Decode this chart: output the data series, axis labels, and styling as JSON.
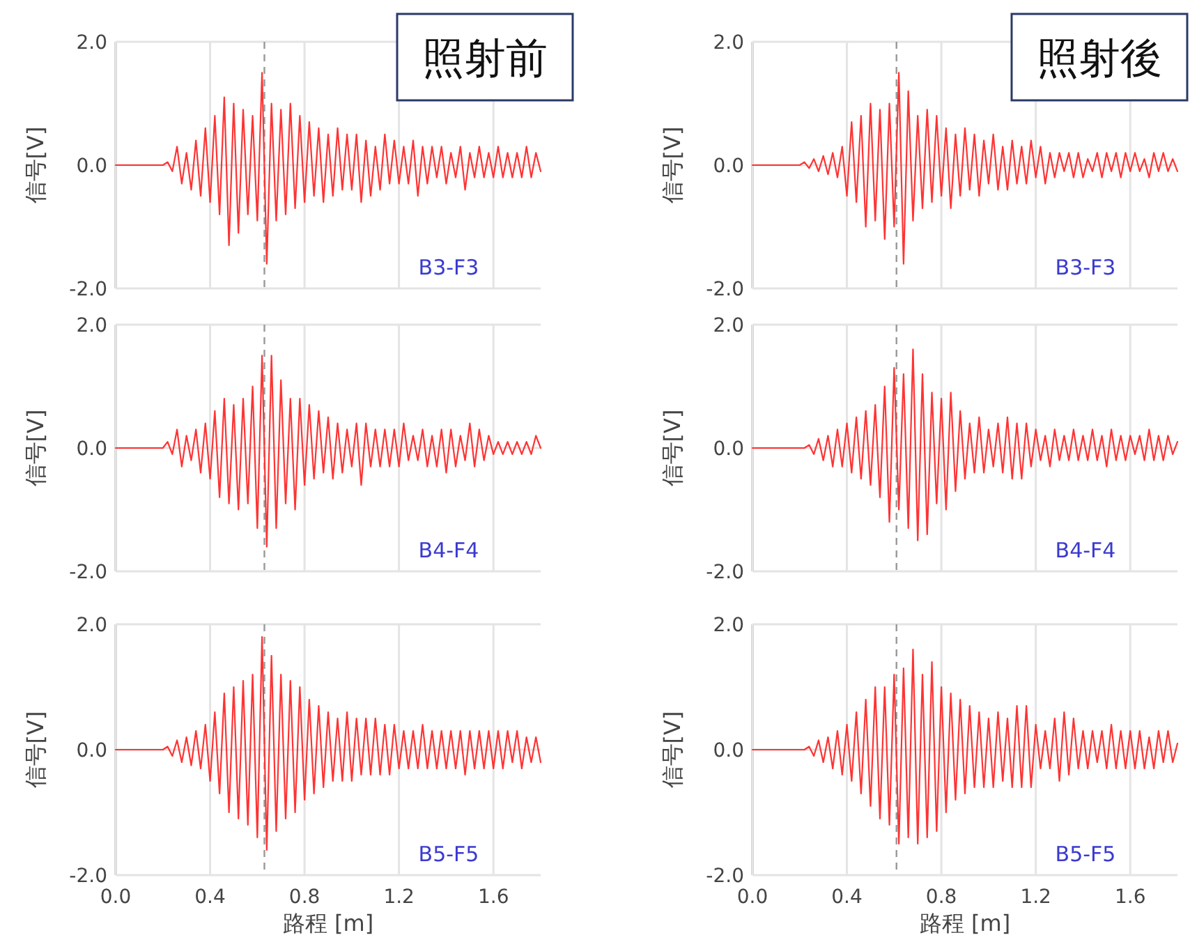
{
  "chart_data": [
    {
      "type": "line",
      "title": "照射前",
      "ylabel": "信号[V]",
      "annotations": [
        "B3-F3"
      ],
      "xlim": [
        0,
        1.8
      ],
      "ylim": [
        -2,
        2
      ],
      "xticks": [
        0,
        0.4,
        0.8,
        1.2,
        1.6
      ],
      "yticks": [
        {
          "value": -2,
          "label": "-2.0"
        },
        {
          "value": 0,
          "label": "0.0"
        },
        {
          "value": 2,
          "label": "2.0"
        }
      ],
      "tick_labels": "y",
      "grid": true,
      "ref_lines": [
        {
          "axis": "x",
          "value": 0.63,
          "line_style": "dashed",
          "color": "#999999"
        }
      ],
      "x": [
        0,
        0.2,
        0.22,
        0.24,
        0.26,
        0.28,
        0.3,
        0.32,
        0.34,
        0.36,
        0.38,
        0.4,
        0.42,
        0.44,
        0.46,
        0.48,
        0.5,
        0.52,
        0.54,
        0.56,
        0.58,
        0.6,
        0.62,
        0.64,
        0.66,
        0.68,
        0.7,
        0.72,
        0.74,
        0.76,
        0.78,
        0.8,
        0.82,
        0.84,
        0.86,
        0.88,
        0.9,
        0.92,
        0.94,
        0.96,
        0.98,
        1,
        1.02,
        1.04,
        1.06,
        1.08,
        1.1,
        1.12,
        1.14,
        1.16,
        1.18,
        1.2,
        1.22,
        1.24,
        1.26,
        1.28,
        1.3,
        1.32,
        1.34,
        1.36,
        1.38,
        1.4,
        1.42,
        1.44,
        1.46,
        1.48,
        1.5,
        1.52,
        1.54,
        1.56,
        1.58,
        1.6,
        1.62,
        1.64,
        1.66,
        1.68,
        1.7,
        1.72,
        1.74,
        1.76,
        1.78,
        1.8
      ],
      "series": [
        {
          "color": "#ff3333",
          "values": [
            0,
            0,
            0.05,
            -0.1,
            0.3,
            -0.3,
            0.2,
            -0.4,
            0.4,
            -0.5,
            0.6,
            -0.6,
            0.8,
            -0.8,
            1.1,
            -1.3,
            1.0,
            -1.1,
            0.9,
            -0.8,
            0.8,
            -0.9,
            1.5,
            -1.6,
            1.0,
            -0.9,
            0.9,
            -0.8,
            1.0,
            -0.7,
            0.8,
            -0.6,
            0.7,
            -0.5,
            0.6,
            -0.6,
            0.5,
            -0.5,
            0.6,
            -0.4,
            0.5,
            -0.4,
            0.5,
            -0.6,
            0.4,
            -0.5,
            0.3,
            -0.4,
            0.5,
            -0.3,
            0.4,
            -0.3,
            0.3,
            -0.3,
            0.4,
            -0.5,
            0.3,
            -0.3,
            0.3,
            -0.2,
            0.3,
            -0.3,
            0.2,
            -0.2,
            0.3,
            -0.4,
            0.2,
            -0.2,
            0.3,
            -0.2,
            0.2,
            -0.2,
            0.3,
            -0.2,
            0.2,
            -0.2,
            0.2,
            -0.2,
            0.3,
            -0.2,
            0.2,
            -0.1
          ]
        }
      ]
    },
    {
      "type": "line",
      "title": "照射後",
      "ylabel": "信号[V]",
      "annotations": [
        "B3-F3"
      ],
      "xlim": [
        0,
        1.8
      ],
      "ylim": [
        -2,
        2
      ],
      "xticks": [
        0,
        0.4,
        0.8,
        1.2,
        1.6
      ],
      "yticks": [
        {
          "value": -2,
          "label": "-2.0"
        },
        {
          "value": 0,
          "label": "0.0"
        },
        {
          "value": 2,
          "label": "2.0"
        }
      ],
      "tick_labels": "y",
      "grid": true,
      "ref_lines": [
        {
          "axis": "x",
          "value": 0.61,
          "line_style": "dashed",
          "color": "#999999"
        }
      ],
      "x": [
        0,
        0.2,
        0.22,
        0.24,
        0.26,
        0.28,
        0.3,
        0.32,
        0.34,
        0.36,
        0.38,
        0.4,
        0.42,
        0.44,
        0.46,
        0.48,
        0.5,
        0.52,
        0.54,
        0.56,
        0.58,
        0.6,
        0.62,
        0.64,
        0.66,
        0.68,
        0.7,
        0.72,
        0.74,
        0.76,
        0.78,
        0.8,
        0.82,
        0.84,
        0.86,
        0.88,
        0.9,
        0.92,
        0.94,
        0.96,
        0.98,
        1,
        1.02,
        1.04,
        1.06,
        1.08,
        1.1,
        1.12,
        1.14,
        1.16,
        1.18,
        1.2,
        1.22,
        1.24,
        1.26,
        1.28,
        1.3,
        1.32,
        1.34,
        1.36,
        1.38,
        1.4,
        1.42,
        1.44,
        1.46,
        1.48,
        1.5,
        1.52,
        1.54,
        1.56,
        1.58,
        1.6,
        1.62,
        1.64,
        1.66,
        1.68,
        1.7,
        1.72,
        1.74,
        1.76,
        1.78,
        1.8
      ],
      "series": [
        {
          "color": "#ff3333",
          "values": [
            0,
            0,
            0.05,
            -0.05,
            0.1,
            -0.1,
            0.15,
            -0.15,
            0.2,
            -0.2,
            0.3,
            -0.5,
            0.7,
            -0.6,
            0.8,
            -1.0,
            1.0,
            -0.9,
            0.9,
            -1.2,
            1.0,
            -1.0,
            1.5,
            -1.6,
            1.2,
            -0.9,
            0.8,
            -0.7,
            0.9,
            -0.6,
            0.8,
            -0.5,
            0.6,
            -0.7,
            0.5,
            -0.5,
            0.6,
            -0.4,
            0.5,
            -0.5,
            0.4,
            -0.3,
            0.5,
            -0.4,
            0.3,
            -0.4,
            0.4,
            -0.3,
            0.3,
            -0.3,
            0.4,
            -0.2,
            0.3,
            -0.3,
            0.2,
            -0.2,
            0.2,
            -0.1,
            0.2,
            -0.2,
            0.2,
            -0.2,
            0.1,
            -0.1,
            0.2,
            -0.2,
            0.2,
            -0.1,
            0.2,
            -0.2,
            0.2,
            -0.1,
            0.2,
            -0.1,
            0.1,
            -0.2,
            0.2,
            -0.1,
            0.2,
            -0.1,
            0.1,
            -0.1
          ]
        }
      ]
    },
    {
      "type": "line",
      "ylabel": "信号[V]",
      "annotations": [
        "B4-F4"
      ],
      "xlim": [
        0,
        1.8
      ],
      "ylim": [
        -2,
        2
      ],
      "xticks": [
        0,
        0.4,
        0.8,
        1.2,
        1.6
      ],
      "yticks": [
        {
          "value": -2,
          "label": "-2.0"
        },
        {
          "value": 0,
          "label": "0.0"
        },
        {
          "value": 2,
          "label": "2.0"
        }
      ],
      "tick_labels": "y",
      "grid": true,
      "ref_lines": [
        {
          "axis": "x",
          "value": 0.63,
          "line_style": "dashed",
          "color": "#999999"
        }
      ],
      "x": [
        0,
        0.2,
        0.22,
        0.24,
        0.26,
        0.28,
        0.3,
        0.32,
        0.34,
        0.36,
        0.38,
        0.4,
        0.42,
        0.44,
        0.46,
        0.48,
        0.5,
        0.52,
        0.54,
        0.56,
        0.58,
        0.6,
        0.62,
        0.64,
        0.66,
        0.68,
        0.7,
        0.72,
        0.74,
        0.76,
        0.78,
        0.8,
        0.82,
        0.84,
        0.86,
        0.88,
        0.9,
        0.92,
        0.94,
        0.96,
        0.98,
        1,
        1.02,
        1.04,
        1.06,
        1.08,
        1.1,
        1.12,
        1.14,
        1.16,
        1.18,
        1.2,
        1.22,
        1.24,
        1.26,
        1.28,
        1.3,
        1.32,
        1.34,
        1.36,
        1.38,
        1.4,
        1.42,
        1.44,
        1.46,
        1.48,
        1.5,
        1.52,
        1.54,
        1.56,
        1.58,
        1.6,
        1.62,
        1.64,
        1.66,
        1.68,
        1.7,
        1.72,
        1.74,
        1.76,
        1.78,
        1.8
      ],
      "series": [
        {
          "color": "#ff3333",
          "values": [
            0,
            0,
            0.1,
            -0.1,
            0.3,
            -0.3,
            0.2,
            -0.2,
            0.3,
            -0.4,
            0.4,
            -0.5,
            0.6,
            -0.8,
            0.8,
            -0.9,
            0.7,
            -1.0,
            0.8,
            -0.9,
            1.0,
            -1.3,
            1.5,
            -1.6,
            1.5,
            -1.3,
            1.1,
            -0.9,
            0.8,
            -1.0,
            0.8,
            -0.6,
            0.7,
            -0.5,
            0.6,
            -0.4,
            0.5,
            -0.5,
            0.4,
            -0.4,
            0.3,
            -0.3,
            0.4,
            -0.6,
            0.4,
            -0.3,
            0.3,
            -0.3,
            0.3,
            -0.3,
            0.3,
            -0.3,
            0.4,
            -0.2,
            0.2,
            -0.2,
            0.3,
            -0.3,
            0.2,
            -0.3,
            0.3,
            -0.4,
            0.3,
            -0.3,
            0.2,
            -0.2,
            0.4,
            -0.3,
            0.3,
            -0.2,
            0.2,
            -0.1,
            0.1,
            -0.1,
            0.1,
            -0.1,
            0.1,
            -0.1,
            0.1,
            -0.1,
            0.2,
            0
          ]
        }
      ]
    },
    {
      "type": "line",
      "ylabel": "信号[V]",
      "annotations": [
        "B4-F4"
      ],
      "xlim": [
        0,
        1.8
      ],
      "ylim": [
        -2,
        2
      ],
      "xticks": [
        0,
        0.4,
        0.8,
        1.2,
        1.6
      ],
      "yticks": [
        {
          "value": -2,
          "label": "-2.0"
        },
        {
          "value": 0,
          "label": "0.0"
        },
        {
          "value": 2,
          "label": "2.0"
        }
      ],
      "tick_labels": "y",
      "grid": true,
      "ref_lines": [
        {
          "axis": "x",
          "value": 0.61,
          "line_style": "dashed",
          "color": "#999999"
        }
      ],
      "x": [
        0,
        0.2,
        0.22,
        0.24,
        0.26,
        0.28,
        0.3,
        0.32,
        0.34,
        0.36,
        0.38,
        0.4,
        0.42,
        0.44,
        0.46,
        0.48,
        0.5,
        0.52,
        0.54,
        0.56,
        0.58,
        0.6,
        0.62,
        0.64,
        0.66,
        0.68,
        0.7,
        0.72,
        0.74,
        0.76,
        0.78,
        0.8,
        0.82,
        0.84,
        0.86,
        0.88,
        0.9,
        0.92,
        0.94,
        0.96,
        0.98,
        1,
        1.02,
        1.04,
        1.06,
        1.08,
        1.1,
        1.12,
        1.14,
        1.16,
        1.18,
        1.2,
        1.22,
        1.24,
        1.26,
        1.28,
        1.3,
        1.32,
        1.34,
        1.36,
        1.38,
        1.4,
        1.42,
        1.44,
        1.46,
        1.48,
        1.5,
        1.52,
        1.54,
        1.56,
        1.58,
        1.6,
        1.62,
        1.64,
        1.66,
        1.68,
        1.7,
        1.72,
        1.74,
        1.76,
        1.78,
        1.8
      ],
      "series": [
        {
          "color": "#ff3333",
          "values": [
            0,
            0,
            0,
            0.05,
            -0.1,
            0.15,
            -0.2,
            0.2,
            -0.3,
            0.3,
            -0.3,
            0.4,
            -0.4,
            0.5,
            -0.5,
            0.6,
            -0.6,
            0.7,
            -0.8,
            1.0,
            -1.2,
            1.3,
            -1.0,
            1.2,
            -1.3,
            1.6,
            -1.5,
            1.2,
            -1.4,
            0.9,
            -0.9,
            0.8,
            -1.0,
            0.9,
            -0.7,
            0.6,
            -0.5,
            0.4,
            -0.4,
            0.5,
            -0.4,
            0.3,
            -0.3,
            0.4,
            -0.4,
            0.5,
            -0.5,
            0.4,
            -0.5,
            0.4,
            -0.3,
            0.3,
            -0.2,
            0.2,
            -0.3,
            0.3,
            -0.2,
            0.2,
            -0.2,
            0.3,
            -0.2,
            0.2,
            -0.2,
            0.3,
            -0.2,
            0.2,
            -0.3,
            0.3,
            -0.2,
            0.2,
            -0.2,
            0.2,
            -0.1,
            0.2,
            -0.2,
            0.3,
            -0.2,
            0.2,
            -0.2,
            0.2,
            -0.1,
            0.1
          ]
        }
      ]
    },
    {
      "type": "line",
      "ylabel": "信号[V]",
      "xlabel": "路程 [m]",
      "annotations": [
        "B5-F5"
      ],
      "xlim": [
        0,
        1.8
      ],
      "ylim": [
        -2,
        2
      ],
      "xticks": [
        {
          "value": 0,
          "label": "0.0"
        },
        0.4,
        0.8,
        1.2,
        1.6
      ],
      "yticks": [
        {
          "value": -2,
          "label": "-2.0"
        },
        {
          "value": 0,
          "label": "0.0"
        },
        {
          "value": 2,
          "label": "2.0"
        }
      ],
      "grid": true,
      "ref_lines": [
        {
          "axis": "x",
          "value": 0.63,
          "line_style": "dashed",
          "color": "#999999"
        }
      ],
      "x": [
        0,
        0.2,
        0.22,
        0.24,
        0.26,
        0.28,
        0.3,
        0.32,
        0.34,
        0.36,
        0.38,
        0.4,
        0.42,
        0.44,
        0.46,
        0.48,
        0.5,
        0.52,
        0.54,
        0.56,
        0.58,
        0.6,
        0.62,
        0.64,
        0.66,
        0.68,
        0.7,
        0.72,
        0.74,
        0.76,
        0.78,
        0.8,
        0.82,
        0.84,
        0.86,
        0.88,
        0.9,
        0.92,
        0.94,
        0.96,
        0.98,
        1,
        1.02,
        1.04,
        1.06,
        1.08,
        1.1,
        1.12,
        1.14,
        1.16,
        1.18,
        1.2,
        1.22,
        1.24,
        1.26,
        1.28,
        1.3,
        1.32,
        1.34,
        1.36,
        1.38,
        1.4,
        1.42,
        1.44,
        1.46,
        1.48,
        1.5,
        1.52,
        1.54,
        1.56,
        1.58,
        1.6,
        1.62,
        1.64,
        1.66,
        1.68,
        1.7,
        1.72,
        1.74,
        1.76,
        1.78,
        1.8
      ],
      "series": [
        {
          "color": "#ff3333",
          "values": [
            0,
            0,
            0.05,
            -0.1,
            0.15,
            -0.2,
            0.2,
            -0.25,
            0.3,
            -0.3,
            0.4,
            -0.5,
            0.6,
            -0.7,
            0.9,
            -1.0,
            1.0,
            -1.1,
            1.1,
            -1.2,
            1.2,
            -1.4,
            1.8,
            -1.6,
            1.5,
            -1.3,
            1.2,
            -1.1,
            1.1,
            -1.0,
            1.0,
            -0.8,
            0.8,
            -0.7,
            0.7,
            -0.6,
            0.6,
            -0.5,
            0.5,
            -0.5,
            0.6,
            -0.5,
            0.5,
            -0.4,
            0.5,
            -0.4,
            0.5,
            -0.4,
            0.4,
            -0.4,
            0.4,
            -0.3,
            0.3,
            -0.3,
            0.3,
            -0.3,
            0.4,
            -0.3,
            0.3,
            -0.3,
            0.3,
            -0.3,
            0.3,
            -0.3,
            0.3,
            -0.4,
            0.3,
            -0.3,
            0.3,
            -0.3,
            0.3,
            -0.3,
            0.3,
            -0.3,
            0.3,
            -0.2,
            0.3,
            -0.3,
            0.2,
            -0.2,
            0.2,
            -0.2
          ]
        }
      ]
    },
    {
      "type": "line",
      "ylabel": "信号[V]",
      "xlabel": "路程 [m]",
      "annotations": [
        "B5-F5"
      ],
      "xlim": [
        0,
        1.8
      ],
      "ylim": [
        -2,
        2
      ],
      "xticks": [
        {
          "value": 0,
          "label": "0.0"
        },
        0.4,
        0.8,
        1.2,
        1.6
      ],
      "yticks": [
        {
          "value": -2,
          "label": "-2.0"
        },
        {
          "value": 0,
          "label": "0.0"
        },
        {
          "value": 2,
          "label": "2.0"
        }
      ],
      "grid": true,
      "ref_lines": [
        {
          "axis": "x",
          "value": 0.61,
          "line_style": "dashed",
          "color": "#999999"
        }
      ],
      "x": [
        0,
        0.2,
        0.22,
        0.24,
        0.26,
        0.28,
        0.3,
        0.32,
        0.34,
        0.36,
        0.38,
        0.4,
        0.42,
        0.44,
        0.46,
        0.48,
        0.5,
        0.52,
        0.54,
        0.56,
        0.58,
        0.6,
        0.62,
        0.64,
        0.66,
        0.68,
        0.7,
        0.72,
        0.74,
        0.76,
        0.78,
        0.8,
        0.82,
        0.84,
        0.86,
        0.88,
        0.9,
        0.92,
        0.94,
        0.96,
        0.98,
        1,
        1.02,
        1.04,
        1.06,
        1.08,
        1.1,
        1.12,
        1.14,
        1.16,
        1.18,
        1.2,
        1.22,
        1.24,
        1.26,
        1.28,
        1.3,
        1.32,
        1.34,
        1.36,
        1.38,
        1.4,
        1.42,
        1.44,
        1.46,
        1.48,
        1.5,
        1.52,
        1.54,
        1.56,
        1.58,
        1.6,
        1.62,
        1.64,
        1.66,
        1.68,
        1.7,
        1.72,
        1.74,
        1.76,
        1.78,
        1.8
      ],
      "series": [
        {
          "color": "#ff3333",
          "values": [
            0,
            0,
            0,
            0.05,
            -0.1,
            0.15,
            -0.2,
            0.2,
            -0.3,
            0.3,
            -0.4,
            0.4,
            -0.5,
            0.6,
            -0.7,
            0.8,
            -0.9,
            1.0,
            -1.1,
            1.0,
            -1.2,
            1.2,
            -1.5,
            1.3,
            -1.4,
            1.6,
            -1.5,
            1.2,
            -1.4,
            1.4,
            -1.3,
            1.0,
            -1.0,
            0.9,
            -0.8,
            0.8,
            -0.7,
            0.7,
            -0.6,
            0.6,
            -0.6,
            0.5,
            -0.6,
            0.6,
            -0.5,
            0.5,
            -0.6,
            0.7,
            -0.6,
            0.7,
            -0.6,
            0.4,
            -0.3,
            0.3,
            -0.3,
            0.5,
            -0.5,
            0.6,
            -0.4,
            0.5,
            -0.3,
            0.3,
            -0.3,
            0.3,
            -0.2,
            0.3,
            -0.3,
            0.4,
            -0.3,
            0.3,
            -0.3,
            0.3,
            -0.3,
            0.3,
            -0.3,
            0.2,
            -0.3,
            0.3,
            -0.2,
            0.3,
            -0.2,
            0.1
          ]
        }
      ]
    }
  ]
}
